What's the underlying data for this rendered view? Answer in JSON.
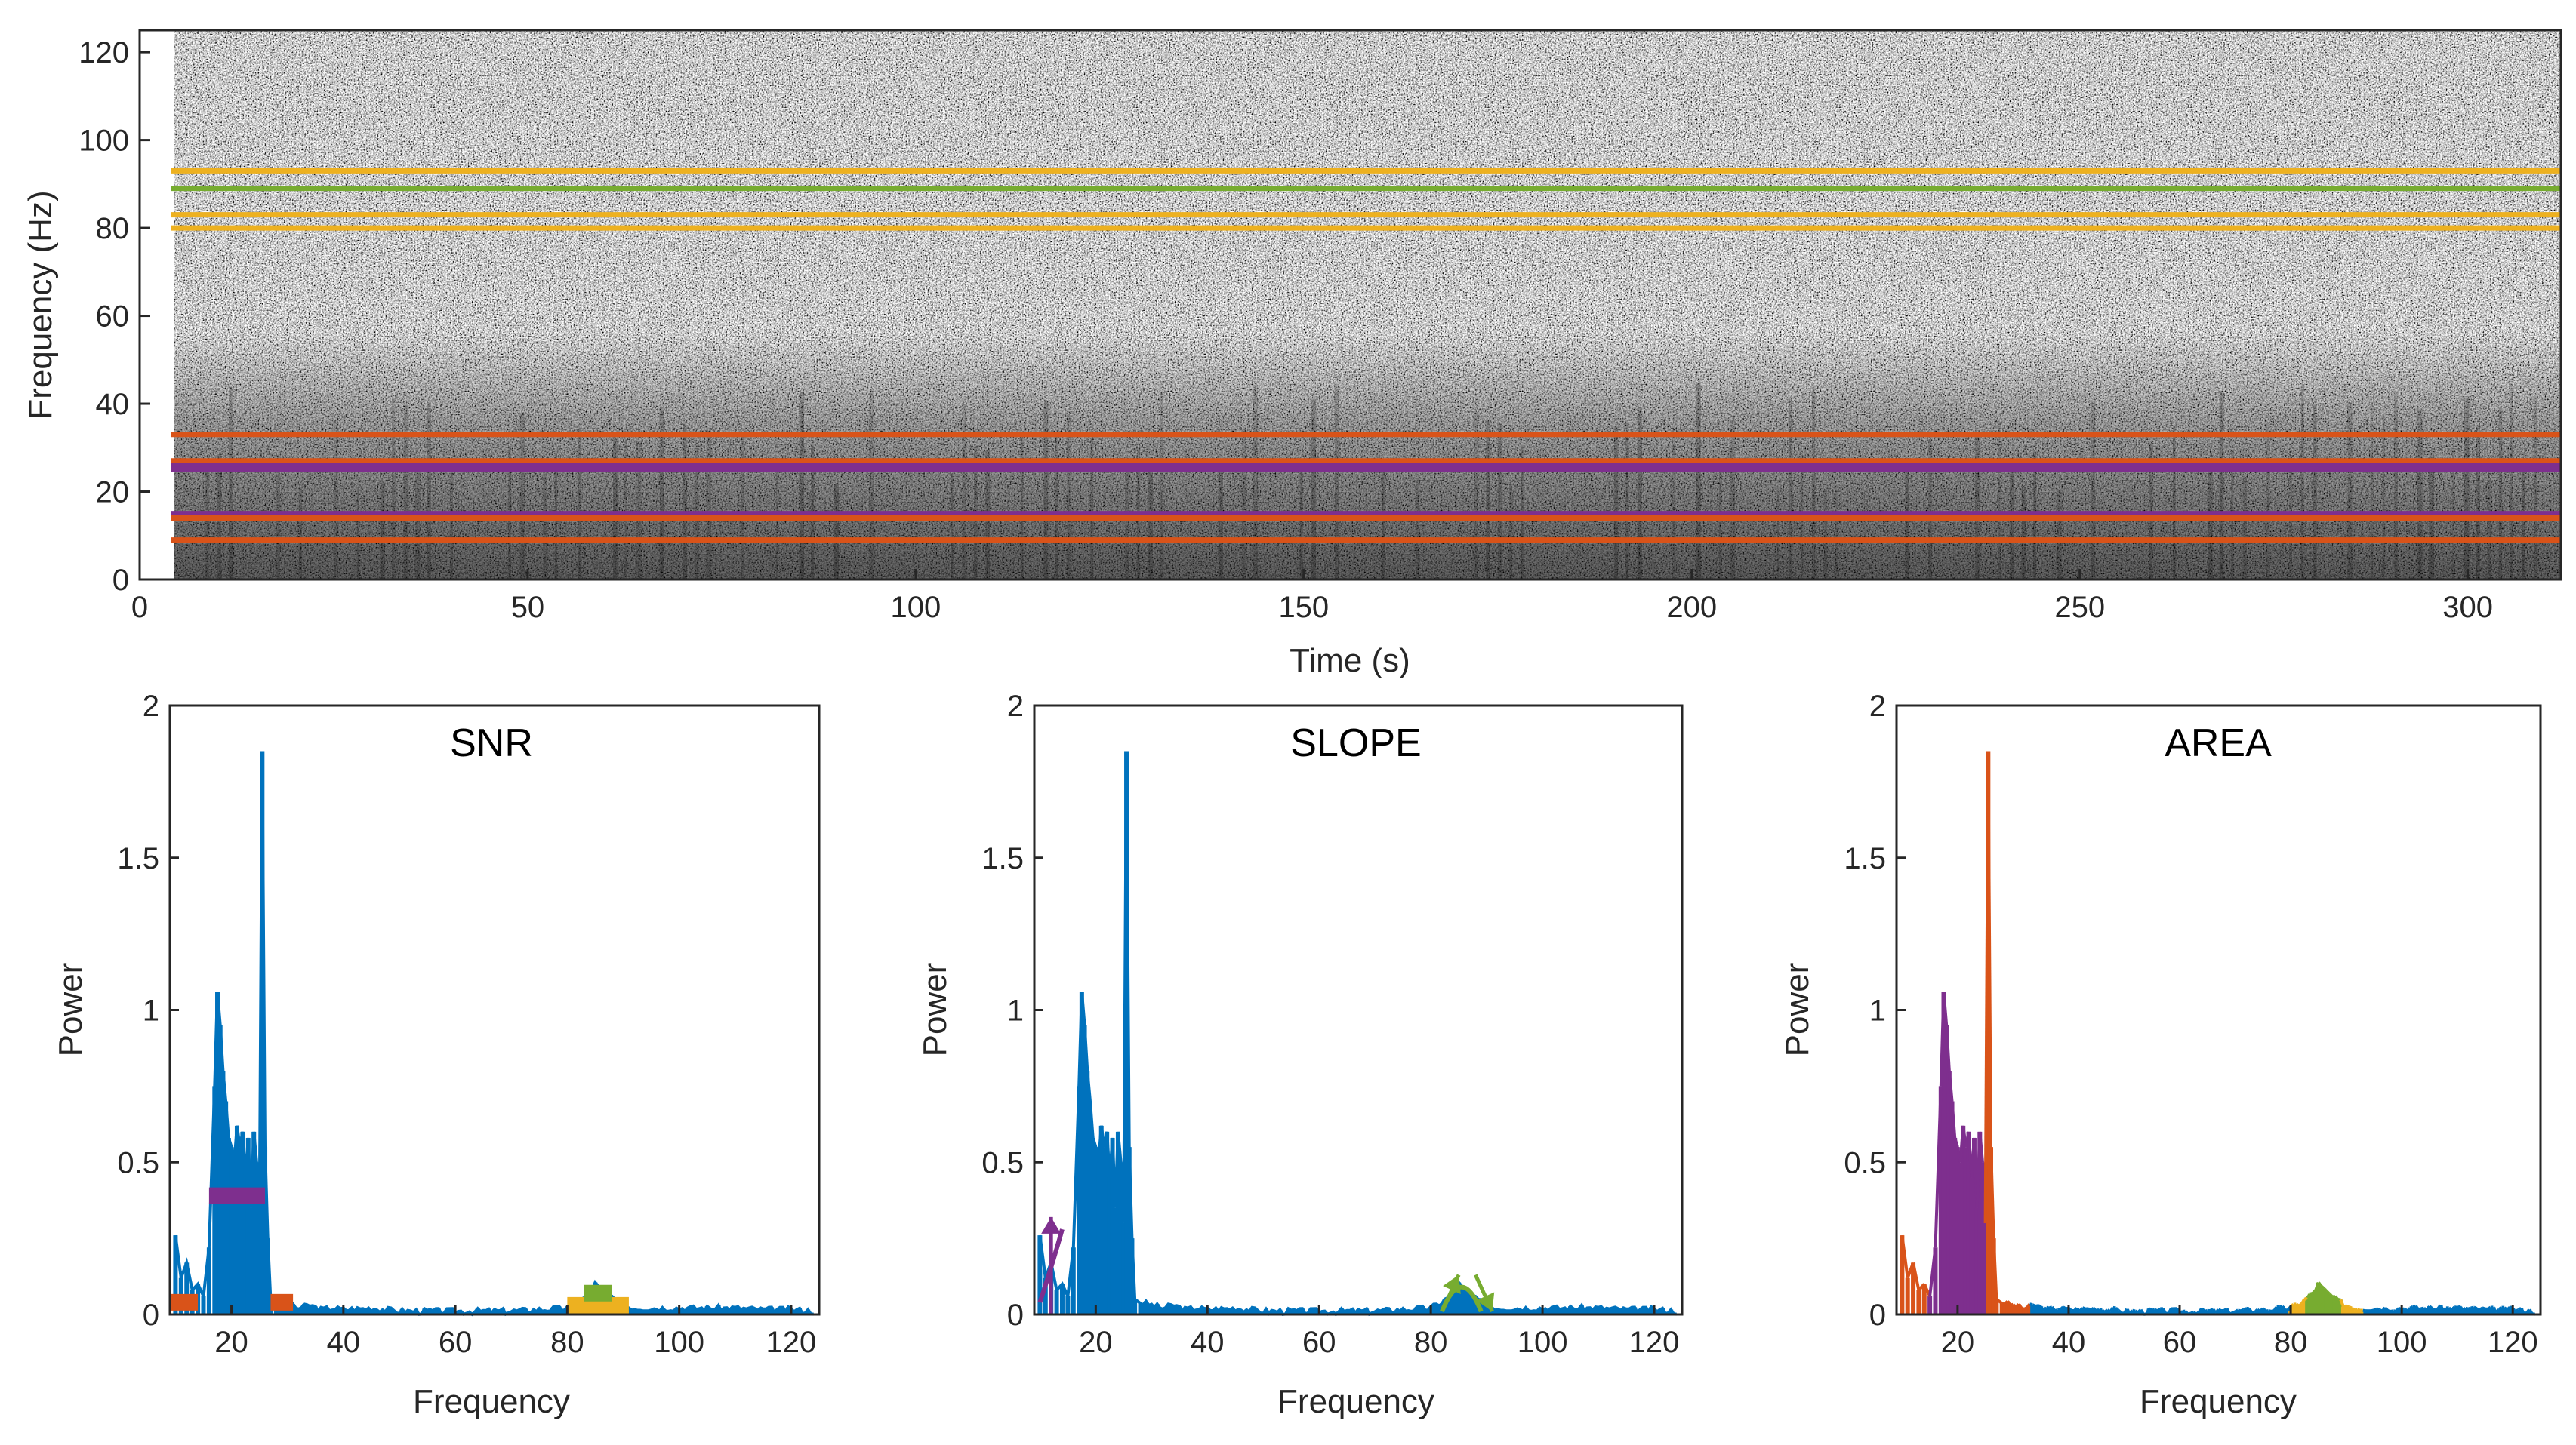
{
  "colors": {
    "blue": "#0072BD",
    "orange": "#D95319",
    "yellow": "#EDB120",
    "purple": "#7E2F8E",
    "green": "#77AC30",
    "axis": "#262626"
  },
  "chart_data": [
    {
      "id": "spectrogram",
      "type": "heatmap",
      "title": "",
      "xlabel": "Time (s)",
      "ylabel": "Frequency (Hz)",
      "xlim": [
        0,
        312
      ],
      "ylim": [
        0,
        125
      ],
      "xticks": [
        0,
        50,
        100,
        150,
        200,
        250,
        300
      ],
      "yticks": [
        0,
        20,
        40,
        60,
        80,
        100,
        120
      ],
      "data_xrange": [
        4,
        312
      ],
      "colormap": "grayscale (dark = high power)",
      "band_lines": [
        {
          "freq": 93,
          "color": "yellow"
        },
        {
          "freq": 89,
          "color": "green"
        },
        {
          "freq": 83,
          "color": "yellow"
        },
        {
          "freq": 80,
          "color": "yellow"
        },
        {
          "freq": 33,
          "color": "orange"
        },
        {
          "freq": 27,
          "color": "orange"
        },
        {
          "freq": 26,
          "color": "purple"
        },
        {
          "freq": 25,
          "color": "purple"
        },
        {
          "freq": 15,
          "color": "purple"
        },
        {
          "freq": 14,
          "color": "orange"
        },
        {
          "freq": 9,
          "color": "orange"
        }
      ]
    },
    {
      "id": "snr",
      "type": "bar",
      "title": "SNR",
      "xlabel": "Frequency",
      "ylabel": "Power",
      "xlim": [
        9,
        125
      ],
      "ylim": [
        0,
        2
      ],
      "xticks": [
        20,
        40,
        60,
        80,
        100,
        120
      ],
      "yticks": [
        0,
        0.5,
        1,
        1.5,
        2
      ],
      "ytick_labels": [
        "0",
        "0.5",
        "1",
        "1.5",
        "2"
      ],
      "spectrum": {
        "x": [
          10,
          11,
          12,
          13,
          14,
          15,
          16,
          17,
          17.5,
          18,
          18.5,
          19,
          19.5,
          20,
          20.5,
          21,
          21.5,
          22,
          22.5,
          23,
          23.5,
          24,
          24.5,
          25,
          25.5,
          26,
          26.5,
          27
        ],
        "y": [
          0.26,
          0.12,
          0.17,
          0.08,
          0.1,
          0.06,
          0.22,
          0.75,
          1.06,
          0.95,
          0.8,
          0.7,
          0.58,
          0.55,
          0.5,
          0.62,
          0.55,
          0.6,
          0.45,
          0.58,
          0.35,
          0.6,
          0.5,
          0.3,
          1.85,
          0.55,
          0.25,
          0.05
        ],
        "floor_x": [
          28,
          30,
          32,
          34,
          36,
          38,
          40,
          45,
          50,
          55,
          60,
          65,
          70,
          75,
          80,
          82,
          84,
          85,
          86,
          88,
          90,
          92,
          95,
          100,
          105,
          110,
          115,
          120,
          124
        ],
        "floor_y": [
          0.04,
          0.03,
          0.02,
          0.03,
          0.015,
          0.02,
          0.015,
          0.02,
          0.01,
          0.01,
          0.01,
          0.01,
          0.01,
          0.015,
          0.02,
          0.04,
          0.07,
          0.1,
          0.08,
          0.05,
          0.03,
          0.02,
          0.02,
          0.02,
          0.02,
          0.02,
          0.015,
          0.015,
          0.01
        ]
      },
      "markers": [
        {
          "color": "orange",
          "x0": 9,
          "x1": 14,
          "y": 0.04
        },
        {
          "color": "purple",
          "x0": 16,
          "x1": 26,
          "y": 0.39
        },
        {
          "color": "orange",
          "x0": 27,
          "x1": 31,
          "y": 0.04
        },
        {
          "color": "yellow",
          "x0": 80,
          "x1": 91,
          "y": 0.03
        },
        {
          "color": "green",
          "x0": 83,
          "x1": 88,
          "y": 0.07
        }
      ]
    },
    {
      "id": "slope",
      "type": "bar",
      "title": "SLOPE",
      "xlabel": "Frequency",
      "ylabel": "Power",
      "xlim": [
        9,
        125
      ],
      "ylim": [
        0,
        2
      ],
      "xticks": [
        20,
        40,
        60,
        80,
        100,
        120
      ],
      "yticks": [
        0,
        0.5,
        1,
        1.5,
        2
      ],
      "ytick_labels": [
        "0",
        "0.5",
        "1",
        "1.5",
        "2"
      ],
      "spectrum_same_as": "snr",
      "arrows": [
        {
          "color": "purple",
          "x": 12,
          "y0": 0.0,
          "y1": 0.32
        },
        {
          "color": "green",
          "x0": 82,
          "y0": 0.01,
          "x1": 85,
          "y1": 0.13
        },
        {
          "color": "green",
          "x0": 88,
          "y0": 0.13,
          "x1": 91,
          "y1": 0.01
        }
      ]
    },
    {
      "id": "area",
      "type": "area",
      "title": "AREA",
      "xlabel": "Frequency",
      "ylabel": "Power",
      "xlim": [
        9,
        125
      ],
      "ylim": [
        0,
        2
      ],
      "xticks": [
        20,
        40,
        60,
        80,
        100,
        120
      ],
      "yticks": [
        0,
        0.5,
        1,
        1.5,
        2
      ],
      "ytick_labels": [
        "0",
        "0.5",
        "1",
        "1.5",
        "2"
      ],
      "fills": [
        {
          "color": "orange",
          "x0": 9,
          "x1": 33
        },
        {
          "color": "purple",
          "x0": 15,
          "x1": 25
        },
        {
          "color": "yellow",
          "x0": 80,
          "x1": 93
        },
        {
          "color": "green",
          "x0": 83,
          "x1": 89
        }
      ]
    }
  ]
}
